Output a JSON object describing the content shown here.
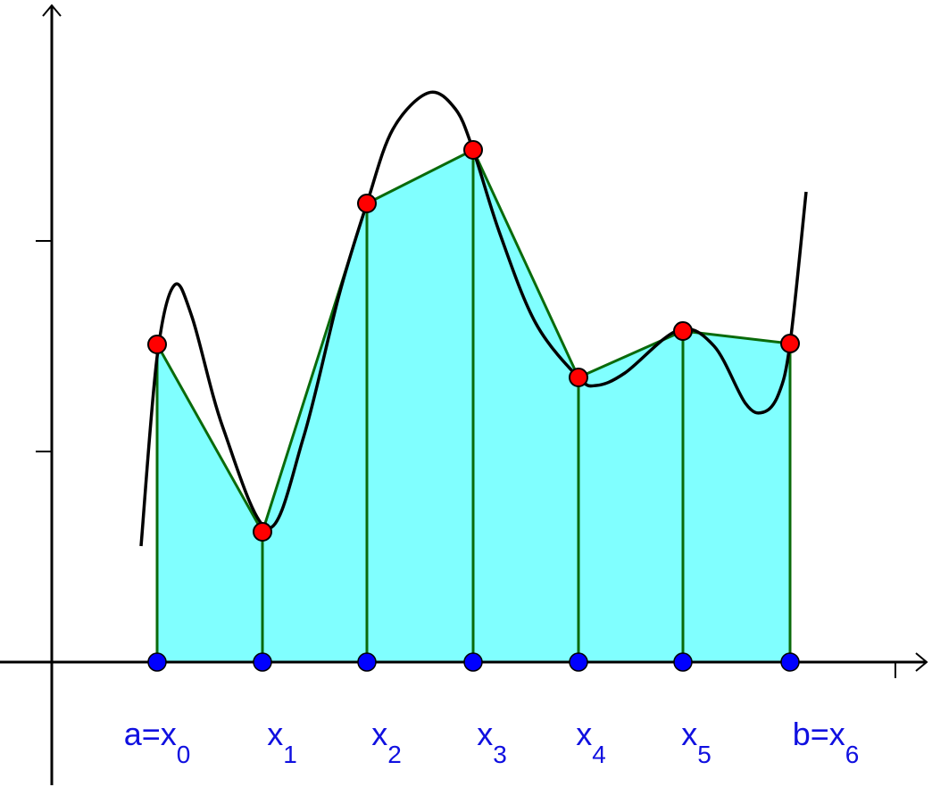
{
  "labels": [
    {
      "main": "a=x",
      "sub": "0"
    },
    {
      "main": "x",
      "sub": "1"
    },
    {
      "main": "x",
      "sub": "2"
    },
    {
      "main": "x",
      "sub": "3"
    },
    {
      "main": "x",
      "sub": "4"
    },
    {
      "main": "x",
      "sub": "5"
    },
    {
      "main": "b=x",
      "sub": "6"
    }
  ]
}
